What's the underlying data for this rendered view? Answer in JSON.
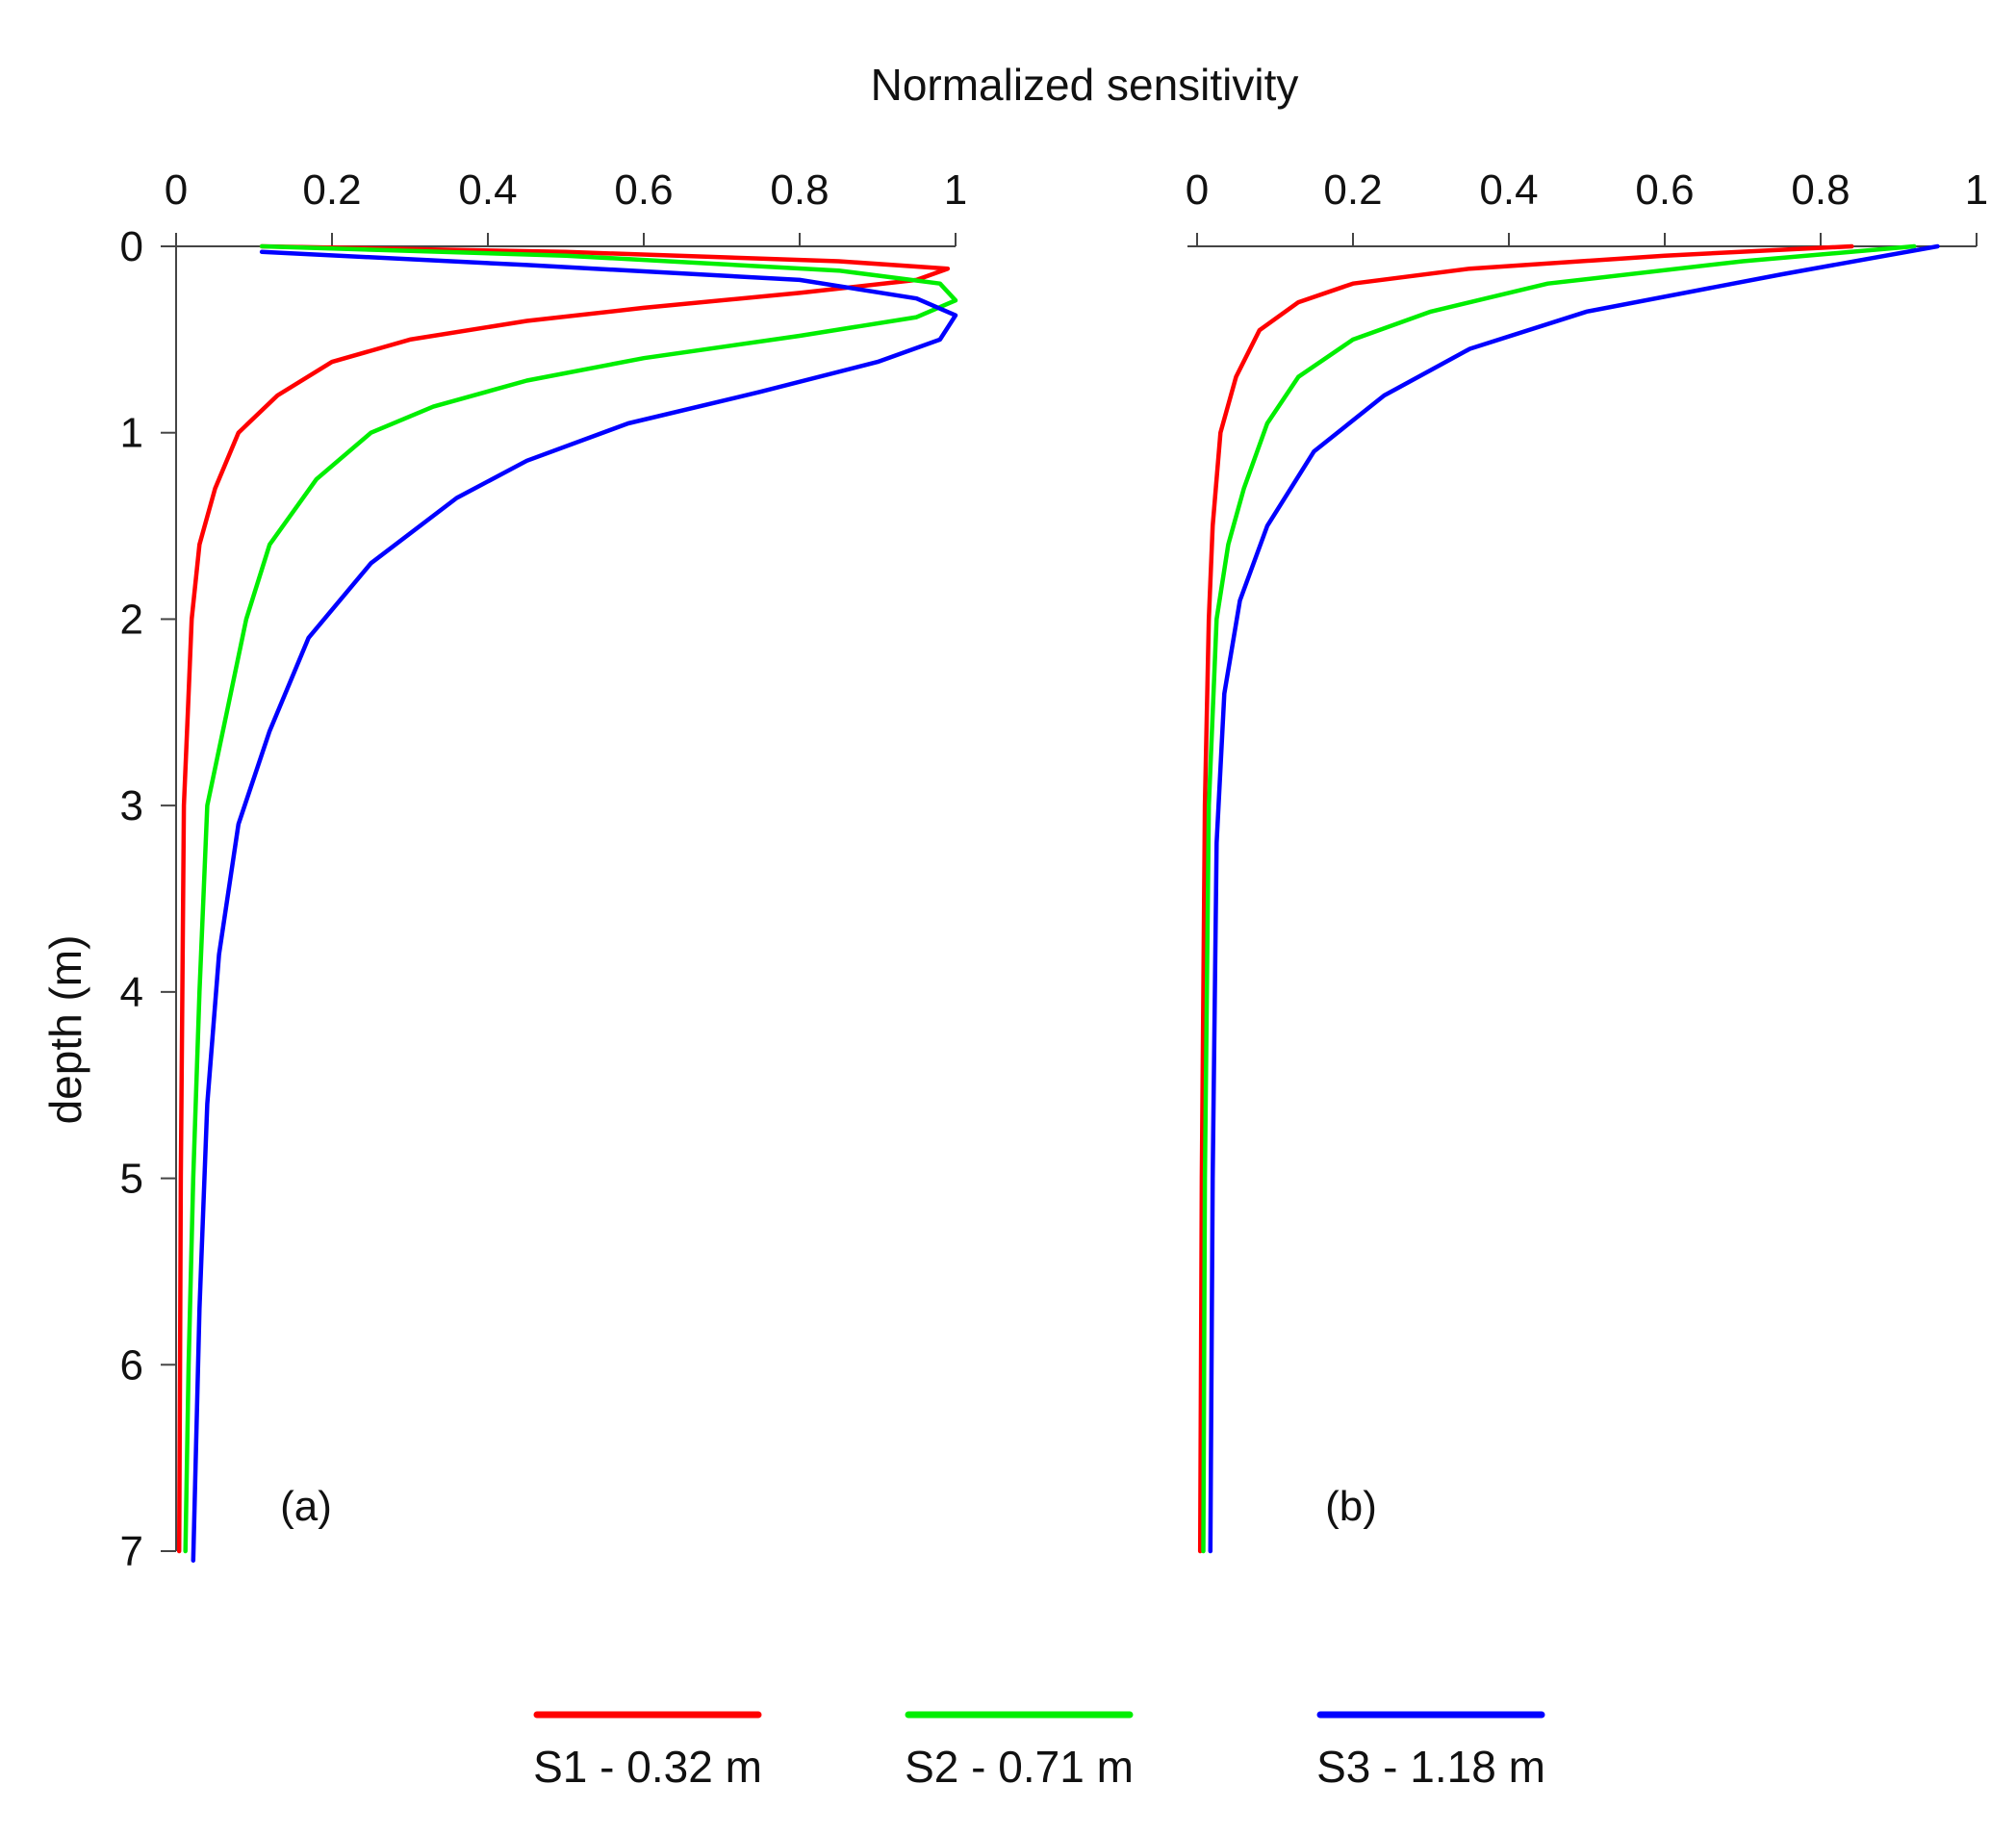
{
  "chart_data": {
    "type": "line",
    "title": "Normalized sensitivity",
    "ylabel": "depth (m)",
    "xlim": [
      0,
      1
    ],
    "ylim": [
      7,
      0
    ],
    "x_ticks": [
      "0",
      "0.2",
      "0.4",
      "0.6",
      "0.8",
      "1"
    ],
    "y_ticks": [
      "0",
      "1",
      "2",
      "3",
      "4",
      "5",
      "6",
      "7"
    ],
    "grid": false,
    "legend_placement": "bottom",
    "legend": [
      {
        "label": "S1 - 0.32 m",
        "color": "#ff0000"
      },
      {
        "label": "S2 - 0.71 m",
        "color": "#00ee00"
      },
      {
        "label": "S3 - 1.18 m",
        "color": "#0000ff"
      }
    ],
    "panels": [
      {
        "label": "(a)",
        "series": [
          {
            "name": "S1 - 0.32 m",
            "color": "#ff0000",
            "x": [
              0.11,
              0.5,
              0.85,
              0.99,
              0.95,
              0.8,
              0.6,
              0.45,
              0.3,
              0.2,
              0.13,
              0.08,
              0.05,
              0.03,
              0.02,
              0.015,
              0.01,
              0.008,
              0.006,
              0.005,
              0.004
            ],
            "y": [
              0.0,
              0.03,
              0.08,
              0.12,
              0.18,
              0.25,
              0.33,
              0.4,
              0.5,
              0.62,
              0.8,
              1.0,
              1.3,
              1.6,
              2.0,
              2.5,
              3.0,
              4.0,
              5.0,
              6.0,
              7.0
            ]
          },
          {
            "name": "S2 - 0.71 m",
            "color": "#00ee00",
            "x": [
              0.11,
              0.5,
              0.85,
              0.98,
              1.0,
              0.95,
              0.8,
              0.6,
              0.45,
              0.33,
              0.25,
              0.18,
              0.12,
              0.09,
              0.065,
              0.04,
              0.03,
              0.022,
              0.016,
              0.012
            ],
            "y": [
              0.0,
              0.05,
              0.13,
              0.2,
              0.29,
              0.38,
              0.48,
              0.6,
              0.72,
              0.86,
              1.0,
              1.25,
              1.6,
              2.0,
              2.5,
              3.0,
              4.0,
              5.0,
              6.0,
              7.0
            ]
          },
          {
            "name": "S3 - 1.18 m",
            "color": "#0000ff",
            "x": [
              0.11,
              0.45,
              0.8,
              0.95,
              1.0,
              0.98,
              0.9,
              0.75,
              0.58,
              0.45,
              0.36,
              0.25,
              0.17,
              0.12,
              0.08,
              0.055,
              0.04,
              0.03,
              0.022
            ],
            "y": [
              0.03,
              0.1,
              0.18,
              0.28,
              0.37,
              0.5,
              0.62,
              0.78,
              0.95,
              1.15,
              1.35,
              1.7,
              2.1,
              2.6,
              3.1,
              3.8,
              4.6,
              5.7,
              7.05
            ]
          }
        ]
      },
      {
        "label": "(b)",
        "series": [
          {
            "name": "S1 - 0.32 m",
            "color": "#ff0000",
            "x": [
              0.84,
              0.6,
              0.35,
              0.2,
              0.13,
              0.08,
              0.05,
              0.03,
              0.02,
              0.015,
              0.01,
              0.006,
              0.004
            ],
            "y": [
              0.0,
              0.05,
              0.12,
              0.2,
              0.3,
              0.45,
              0.7,
              1.0,
              1.5,
              2.0,
              3.0,
              5.0,
              7.0
            ]
          },
          {
            "name": "S2 - 0.71 m",
            "color": "#00ee00",
            "x": [
              0.92,
              0.7,
              0.45,
              0.3,
              0.2,
              0.13,
              0.09,
              0.06,
              0.04,
              0.025,
              0.015,
              0.01,
              0.008
            ],
            "y": [
              0.0,
              0.08,
              0.2,
              0.35,
              0.5,
              0.7,
              0.95,
              1.3,
              1.6,
              2.0,
              3.0,
              5.0,
              7.0
            ]
          },
          {
            "name": "S3 - 1.18 m",
            "color": "#0000ff",
            "x": [
              0.95,
              0.75,
              0.5,
              0.35,
              0.24,
              0.15,
              0.09,
              0.055,
              0.035,
              0.025,
              0.02,
              0.017
            ],
            "y": [
              0.0,
              0.15,
              0.35,
              0.55,
              0.8,
              1.1,
              1.5,
              1.9,
              2.4,
              3.2,
              5.0,
              7.0
            ]
          }
        ]
      }
    ]
  }
}
